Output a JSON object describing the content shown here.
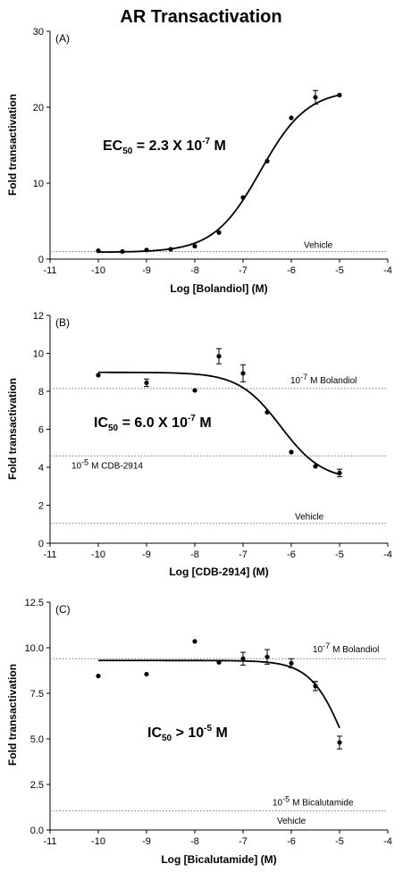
{
  "figure": {
    "title": "AR Transactivation"
  },
  "chart_data": [
    {
      "type": "scatter",
      "panel_label": "(A)",
      "xlabel": "Log [Bolandiol] (M)",
      "ylabel": "Fold transactivation",
      "xlim": [
        -11,
        -4
      ],
      "ylim": [
        0,
        30
      ],
      "x_ticks": [
        "-11",
        "-10",
        "-9",
        "-8",
        "-7",
        "-6",
        "-5",
        "-4"
      ],
      "y_ticks": [
        "0",
        "10",
        "20",
        "30"
      ],
      "points": [
        {
          "x": -10,
          "y": 1.1
        },
        {
          "x": -9.5,
          "y": 1.0
        },
        {
          "x": -9,
          "y": 1.2
        },
        {
          "x": -8.5,
          "y": 1.3
        },
        {
          "x": -8,
          "y": 1.7
        },
        {
          "x": -7.5,
          "y": 3.5
        },
        {
          "x": -7,
          "y": 8.1
        },
        {
          "x": -6.5,
          "y": 12.9
        },
        {
          "x": -6,
          "y": 18.6
        },
        {
          "x": -5.5,
          "y": 21.3,
          "err": 0.9
        },
        {
          "x": -5,
          "y": 21.6
        }
      ],
      "fit": {
        "model": "sigmoid",
        "bottom": 0.9,
        "top": 22.3,
        "logc": -6.64,
        "hill": 0.9,
        "x_from": -10,
        "x_to": -5
      },
      "reference_lines": [
        {
          "y": 1.0,
          "label": "Vehicle"
        }
      ],
      "annotation": {
        "lead": "EC",
        "sub": "50",
        "main": " = 2.3 X 10",
        "sup": "-7",
        "tail": " M"
      }
    },
    {
      "type": "scatter",
      "panel_label": "(B)",
      "xlabel": "Log [CDB-2914] (M)",
      "ylabel": "Fold transactivation",
      "xlim": [
        -11,
        -4
      ],
      "ylim": [
        0,
        12
      ],
      "x_ticks": [
        "-11",
        "-10",
        "-9",
        "-8",
        "-7",
        "-6",
        "-5",
        "-4"
      ],
      "y_ticks": [
        "0",
        "2",
        "4",
        "6",
        "8",
        "10",
        "12"
      ],
      "points": [
        {
          "x": -10,
          "y": 8.85
        },
        {
          "x": -9,
          "y": 8.45,
          "err": 0.2
        },
        {
          "x": -8,
          "y": 8.05
        },
        {
          "x": -7.5,
          "y": 9.85,
          "err": 0.4
        },
        {
          "x": -7,
          "y": 8.95,
          "err": 0.45
        },
        {
          "x": -6.5,
          "y": 6.9
        },
        {
          "x": -6,
          "y": 4.8
        },
        {
          "x": -5.5,
          "y": 4.05
        },
        {
          "x": -5,
          "y": 3.7,
          "err": 0.2
        }
      ],
      "fit": {
        "model": "sigmoid",
        "bottom": 3.3,
        "top": 9.0,
        "logc": -6.22,
        "hill": -1.0,
        "x_from": -10,
        "x_to": -5
      },
      "reference_lines": [
        {
          "y": 8.15,
          "label": "M Bolandiol",
          "prefix": "10",
          "sup": "-7"
        },
        {
          "y": 4.6,
          "label": "M CDB-2914",
          "prefix": "10",
          "sup": "-5"
        },
        {
          "y": 1.05,
          "label": "Vehicle"
        }
      ],
      "annotation": {
        "lead": "IC",
        "sub": "50",
        "main": " = 6.0 X 10",
        "sup": "-7",
        "tail": " M"
      }
    },
    {
      "type": "scatter",
      "panel_label": "(C)",
      "xlabel": "Log [Bicalutamide] (M)",
      "ylabel": "Fold transactivation",
      "xlim": [
        -11,
        -4
      ],
      "ylim": [
        0,
        12.5
      ],
      "x_ticks": [
        "-11",
        "-10",
        "-9",
        "-8",
        "-7",
        "-6",
        "-5",
        "-4"
      ],
      "y_ticks": [
        "0.0",
        "2.5",
        "5.0",
        "7.5",
        "10.0",
        "12.5"
      ],
      "points": [
        {
          "x": -10,
          "y": 8.45
        },
        {
          "x": -9,
          "y": 8.55
        },
        {
          "x": -8,
          "y": 10.35
        },
        {
          "x": -7.5,
          "y": 9.2
        },
        {
          "x": -7,
          "y": 9.4,
          "err": 0.35
        },
        {
          "x": -6.5,
          "y": 9.5,
          "err": 0.4
        },
        {
          "x": -6,
          "y": 9.15,
          "err": 0.25
        },
        {
          "x": -5.5,
          "y": 7.9,
          "err": 0.25
        },
        {
          "x": -5,
          "y": 4.8,
          "err": 0.35
        }
      ],
      "fit": {
        "model": "sigmoid",
        "bottom": 0,
        "top": 9.3,
        "logc": -4.85,
        "hill": -1.2,
        "x_from": -10,
        "x_to": -5
      },
      "reference_lines": [
        {
          "y": 9.4,
          "label": "M Bolandiol",
          "prefix": "10",
          "sup": "-7"
        },
        {
          "y": 1.05,
          "label": "M Bicalutamide",
          "prefix": "10",
          "sup": "-5"
        }
      ],
      "extra_labels": [
        {
          "text": "Vehicle"
        }
      ],
      "annotation": {
        "lead": "IC",
        "sub": "50",
        "main": " > 10",
        "sup": "-5",
        "tail": " M"
      }
    }
  ]
}
